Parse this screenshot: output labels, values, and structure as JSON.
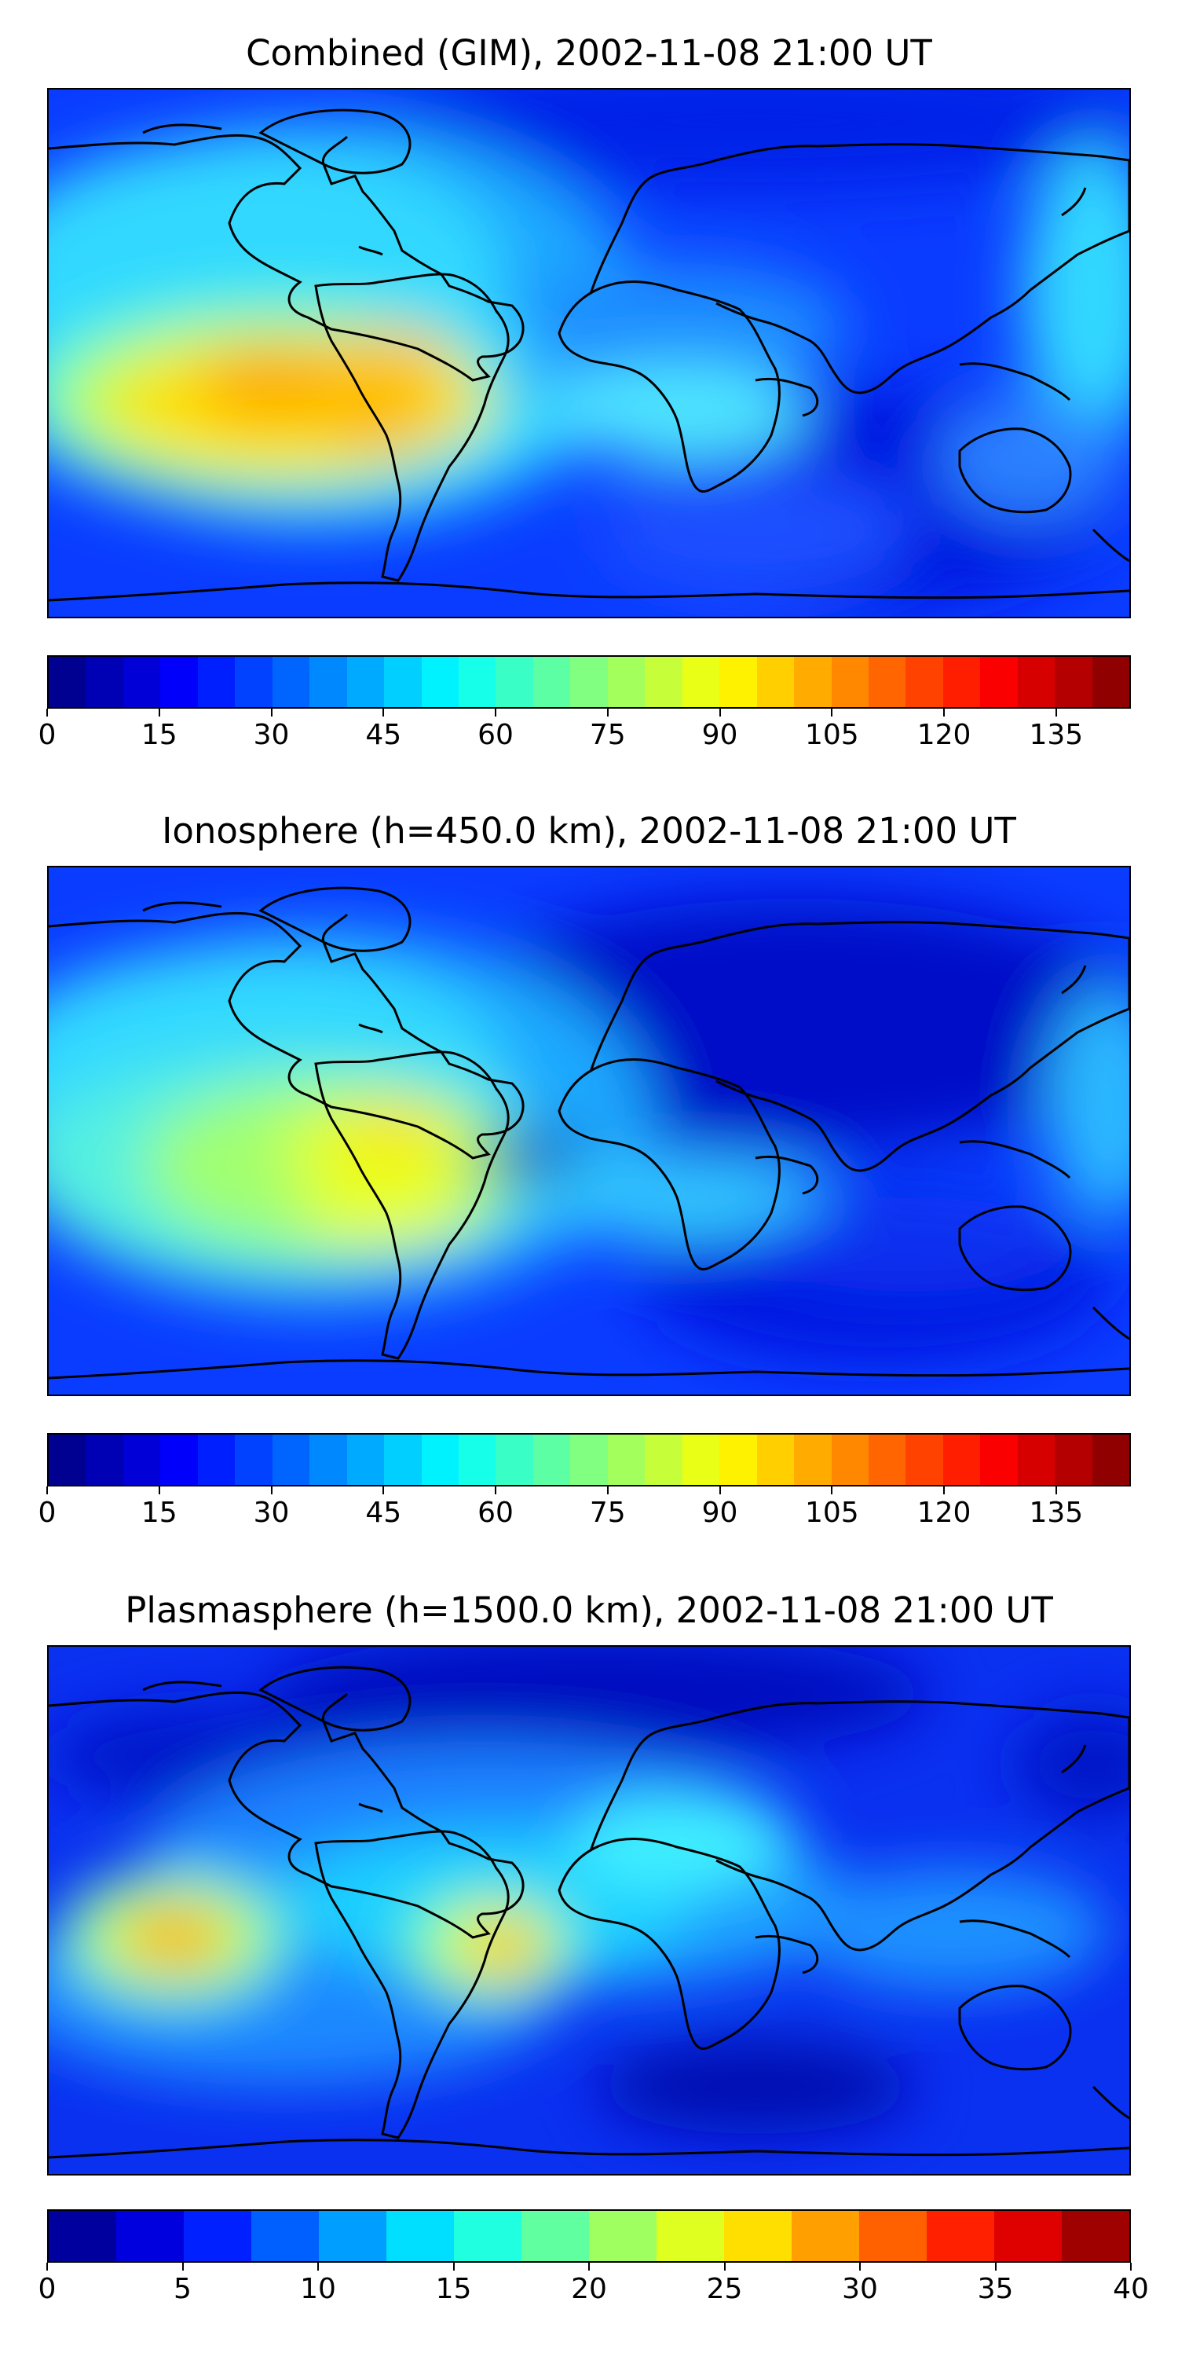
{
  "panels": [
    {
      "title": "Combined (GIM), 2002-11-08 21:00 UT",
      "colorbar": {
        "min": 0,
        "max": 145,
        "levels": 29,
        "ticks": [
          "0",
          "15",
          "30",
          "45",
          "60",
          "75",
          "90",
          "105",
          "120",
          "135"
        ]
      }
    },
    {
      "title": "Ionosphere  (h=450.0 km), 2002-11-08 21:00 UT",
      "colorbar": {
        "min": 0,
        "max": 145,
        "levels": 29,
        "ticks": [
          "0",
          "15",
          "30",
          "45",
          "60",
          "75",
          "90",
          "105",
          "120",
          "135"
        ]
      }
    },
    {
      "title": "Plasmasphere (h=1500.0 km), 2002-11-08 21:00 UT",
      "colorbar": {
        "min": 0,
        "max": 40,
        "levels": 16,
        "ticks": [
          "0",
          "5",
          "10",
          "15",
          "20",
          "25",
          "30",
          "35",
          "40"
        ]
      }
    }
  ],
  "colormap": "jet",
  "map_projection": "plate-carree",
  "coastlines": true
}
